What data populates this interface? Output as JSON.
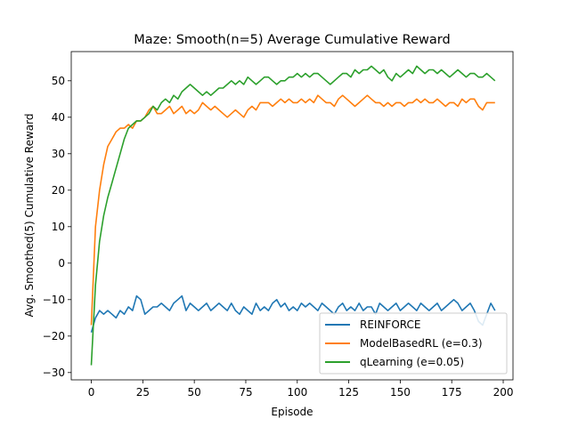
{
  "chart_data": {
    "type": "line",
    "title": "Maze: Smooth(n=5) Average Cumulative Reward",
    "xlabel": "Episode",
    "ylabel": "Avg. Smoothed(5) Cumulative Reward",
    "xlim": [
      -9.75,
      204.75
    ],
    "ylim": [
      -32,
      58
    ],
    "xticks": [
      0,
      25,
      50,
      75,
      100,
      125,
      150,
      175,
      200
    ],
    "yticks": [
      -30,
      -20,
      -10,
      0,
      10,
      20,
      30,
      40,
      50
    ],
    "grid": false,
    "legend_position": "lower-right",
    "series": [
      {
        "name": "REINFORCE",
        "color": "#1f77b4",
        "points": [
          [
            0,
            -19
          ],
          [
            2,
            -15
          ],
          [
            4,
            -13
          ],
          [
            6,
            -14
          ],
          [
            8,
            -13
          ],
          [
            10,
            -14
          ],
          [
            12,
            -15
          ],
          [
            14,
            -13
          ],
          [
            16,
            -14
          ],
          [
            18,
            -12
          ],
          [
            20,
            -13
          ],
          [
            22,
            -9
          ],
          [
            24,
            -10
          ],
          [
            26,
            -14
          ],
          [
            28,
            -13
          ],
          [
            30,
            -12
          ],
          [
            32,
            -12
          ],
          [
            34,
            -11
          ],
          [
            36,
            -12
          ],
          [
            38,
            -13
          ],
          [
            40,
            -11
          ],
          [
            42,
            -10
          ],
          [
            44,
            -9
          ],
          [
            46,
            -13
          ],
          [
            48,
            -11
          ],
          [
            50,
            -12
          ],
          [
            52,
            -13
          ],
          [
            54,
            -12
          ],
          [
            56,
            -11
          ],
          [
            58,
            -13
          ],
          [
            60,
            -12
          ],
          [
            62,
            -11
          ],
          [
            64,
            -12
          ],
          [
            66,
            -13
          ],
          [
            68,
            -11
          ],
          [
            70,
            -13
          ],
          [
            72,
            -14
          ],
          [
            74,
            -12
          ],
          [
            76,
            -13
          ],
          [
            78,
            -14
          ],
          [
            80,
            -11
          ],
          [
            82,
            -13
          ],
          [
            84,
            -12
          ],
          [
            86,
            -13
          ],
          [
            88,
            -11
          ],
          [
            90,
            -10
          ],
          [
            92,
            -12
          ],
          [
            94,
            -11
          ],
          [
            96,
            -13
          ],
          [
            98,
            -12
          ],
          [
            100,
            -13
          ],
          [
            102,
            -11
          ],
          [
            104,
            -12
          ],
          [
            106,
            -11
          ],
          [
            108,
            -12
          ],
          [
            110,
            -13
          ],
          [
            112,
            -11
          ],
          [
            114,
            -12
          ],
          [
            116,
            -13
          ],
          [
            118,
            -14
          ],
          [
            120,
            -12
          ],
          [
            122,
            -11
          ],
          [
            124,
            -13
          ],
          [
            126,
            -12
          ],
          [
            128,
            -13
          ],
          [
            130,
            -11
          ],
          [
            132,
            -13
          ],
          [
            134,
            -12
          ],
          [
            136,
            -12
          ],
          [
            138,
            -14
          ],
          [
            140,
            -11
          ],
          [
            142,
            -12
          ],
          [
            144,
            -13
          ],
          [
            146,
            -12
          ],
          [
            148,
            -11
          ],
          [
            150,
            -13
          ],
          [
            152,
            -12
          ],
          [
            154,
            -11
          ],
          [
            156,
            -12
          ],
          [
            158,
            -13
          ],
          [
            160,
            -11
          ],
          [
            162,
            -12
          ],
          [
            164,
            -13
          ],
          [
            166,
            -12
          ],
          [
            168,
            -11
          ],
          [
            170,
            -13
          ],
          [
            172,
            -12
          ],
          [
            174,
            -11
          ],
          [
            176,
            -10
          ],
          [
            178,
            -11
          ],
          [
            180,
            -13
          ],
          [
            182,
            -12
          ],
          [
            184,
            -11
          ],
          [
            186,
            -13
          ],
          [
            188,
            -16
          ],
          [
            190,
            -17
          ],
          [
            192,
            -14
          ],
          [
            194,
            -11
          ],
          [
            196,
            -13
          ]
        ]
      },
      {
        "name": "ModelBasedRL (e=0.3)",
        "color": "#ff7f0e",
        "points": [
          [
            0,
            -17
          ],
          [
            2,
            10
          ],
          [
            4,
            20
          ],
          [
            6,
            27
          ],
          [
            8,
            32
          ],
          [
            10,
            34
          ],
          [
            12,
            36
          ],
          [
            14,
            37
          ],
          [
            16,
            37
          ],
          [
            18,
            38
          ],
          [
            20,
            37
          ],
          [
            22,
            39
          ],
          [
            24,
            39
          ],
          [
            26,
            40
          ],
          [
            28,
            42
          ],
          [
            30,
            43
          ],
          [
            32,
            41
          ],
          [
            34,
            41
          ],
          [
            36,
            42
          ],
          [
            38,
            43
          ],
          [
            40,
            41
          ],
          [
            42,
            42
          ],
          [
            44,
            43
          ],
          [
            46,
            41
          ],
          [
            48,
            42
          ],
          [
            50,
            41
          ],
          [
            52,
            42
          ],
          [
            54,
            44
          ],
          [
            56,
            43
          ],
          [
            58,
            42
          ],
          [
            60,
            43
          ],
          [
            62,
            42
          ],
          [
            64,
            41
          ],
          [
            66,
            40
          ],
          [
            68,
            41
          ],
          [
            70,
            42
          ],
          [
            72,
            41
          ],
          [
            74,
            40
          ],
          [
            76,
            42
          ],
          [
            78,
            43
          ],
          [
            80,
            42
          ],
          [
            82,
            44
          ],
          [
            84,
            44
          ],
          [
            86,
            44
          ],
          [
            88,
            43
          ],
          [
            90,
            44
          ],
          [
            92,
            45
          ],
          [
            94,
            44
          ],
          [
            96,
            45
          ],
          [
            98,
            44
          ],
          [
            100,
            44
          ],
          [
            102,
            45
          ],
          [
            104,
            44
          ],
          [
            106,
            45
          ],
          [
            108,
            44
          ],
          [
            110,
            46
          ],
          [
            112,
            45
          ],
          [
            114,
            44
          ],
          [
            116,
            44
          ],
          [
            118,
            43
          ],
          [
            120,
            45
          ],
          [
            122,
            46
          ],
          [
            124,
            45
          ],
          [
            126,
            44
          ],
          [
            128,
            43
          ],
          [
            130,
            44
          ],
          [
            132,
            45
          ],
          [
            134,
            46
          ],
          [
            136,
            45
          ],
          [
            138,
            44
          ],
          [
            140,
            44
          ],
          [
            142,
            43
          ],
          [
            144,
            44
          ],
          [
            146,
            43
          ],
          [
            148,
            44
          ],
          [
            150,
            44
          ],
          [
            152,
            43
          ],
          [
            154,
            44
          ],
          [
            156,
            44
          ],
          [
            158,
            45
          ],
          [
            160,
            44
          ],
          [
            162,
            45
          ],
          [
            164,
            44
          ],
          [
            166,
            44
          ],
          [
            168,
            45
          ],
          [
            170,
            44
          ],
          [
            172,
            43
          ],
          [
            174,
            44
          ],
          [
            176,
            44
          ],
          [
            178,
            43
          ],
          [
            180,
            45
          ],
          [
            182,
            44
          ],
          [
            184,
            45
          ],
          [
            186,
            45
          ],
          [
            188,
            43
          ],
          [
            190,
            42
          ],
          [
            192,
            44
          ],
          [
            194,
            44
          ],
          [
            196,
            44
          ]
        ]
      },
      {
        "name": "qLearning (e=0.05)",
        "color": "#2ca02c",
        "points": [
          [
            0,
            -28
          ],
          [
            2,
            -6
          ],
          [
            4,
            6
          ],
          [
            6,
            13
          ],
          [
            8,
            18
          ],
          [
            10,
            22
          ],
          [
            12,
            26
          ],
          [
            14,
            30
          ],
          [
            16,
            34
          ],
          [
            18,
            37
          ],
          [
            20,
            38
          ],
          [
            22,
            39
          ],
          [
            24,
            39
          ],
          [
            26,
            40
          ],
          [
            28,
            41
          ],
          [
            30,
            43
          ],
          [
            32,
            42
          ],
          [
            34,
            44
          ],
          [
            36,
            45
          ],
          [
            38,
            44
          ],
          [
            40,
            46
          ],
          [
            42,
            45
          ],
          [
            44,
            47
          ],
          [
            46,
            48
          ],
          [
            48,
            49
          ],
          [
            50,
            48
          ],
          [
            52,
            47
          ],
          [
            54,
            46
          ],
          [
            56,
            47
          ],
          [
            58,
            46
          ],
          [
            60,
            47
          ],
          [
            62,
            48
          ],
          [
            64,
            48
          ],
          [
            66,
            49
          ],
          [
            68,
            50
          ],
          [
            70,
            49
          ],
          [
            72,
            50
          ],
          [
            74,
            49
          ],
          [
            76,
            51
          ],
          [
            78,
            50
          ],
          [
            80,
            49
          ],
          [
            82,
            50
          ],
          [
            84,
            51
          ],
          [
            86,
            51
          ],
          [
            88,
            50
          ],
          [
            90,
            49
          ],
          [
            92,
            50
          ],
          [
            94,
            50
          ],
          [
            96,
            51
          ],
          [
            98,
            51
          ],
          [
            100,
            52
          ],
          [
            102,
            51
          ],
          [
            104,
            52
          ],
          [
            106,
            51
          ],
          [
            108,
            52
          ],
          [
            110,
            52
          ],
          [
            112,
            51
          ],
          [
            114,
            50
          ],
          [
            116,
            49
          ],
          [
            118,
            50
          ],
          [
            120,
            51
          ],
          [
            122,
            52
          ],
          [
            124,
            52
          ],
          [
            126,
            51
          ],
          [
            128,
            53
          ],
          [
            130,
            52
          ],
          [
            132,
            53
          ],
          [
            134,
            53
          ],
          [
            136,
            54
          ],
          [
            138,
            53
          ],
          [
            140,
            52
          ],
          [
            142,
            53
          ],
          [
            144,
            51
          ],
          [
            146,
            50
          ],
          [
            148,
            52
          ],
          [
            150,
            51
          ],
          [
            152,
            52
          ],
          [
            154,
            53
          ],
          [
            156,
            52
          ],
          [
            158,
            54
          ],
          [
            160,
            53
          ],
          [
            162,
            52
          ],
          [
            164,
            53
          ],
          [
            166,
            53
          ],
          [
            168,
            52
          ],
          [
            170,
            53
          ],
          [
            172,
            52
          ],
          [
            174,
            51
          ],
          [
            176,
            52
          ],
          [
            178,
            53
          ],
          [
            180,
            52
          ],
          [
            182,
            51
          ],
          [
            184,
            52
          ],
          [
            186,
            52
          ],
          [
            188,
            51
          ],
          [
            190,
            51
          ],
          [
            192,
            52
          ],
          [
            194,
            51
          ],
          [
            196,
            50
          ]
        ]
      }
    ]
  }
}
